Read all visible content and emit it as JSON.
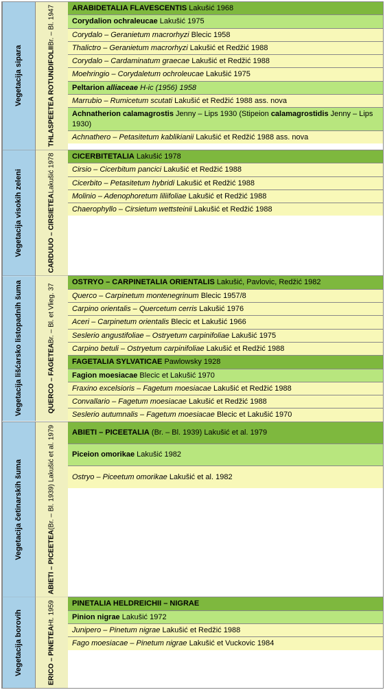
{
  "sections": [
    {
      "col1": "Vegetacija sipara",
      "col2": "<span class='bold'>THLASPEETEA ROTUNDIFOLII</span> Br. – Bl. 1947",
      "rows": [
        {
          "cls": "dark-green",
          "html": "<b>ARABIDETALIA FLAVESCENTIS</b> Lakušić 1968"
        },
        {
          "cls": "light-green",
          "html": "<b>Corydalion ochraleucae</b> Lakušić 1975"
        },
        {
          "cls": "yellow",
          "html": "<i>Corydalo – Geranietum macrorhyzi</i> Blecic 1958"
        },
        {
          "cls": "yellow",
          "html": "<i>Thalictro – Geranietum macrorhyzi</i> Lakušić et Redžić 1988"
        },
        {
          "cls": "yellow",
          "html": "<i>Corydalo – Cardaminatum graecae</i> Lakušić et Redžić 1988"
        },
        {
          "cls": "yellow",
          "html": "<i>Moehringio – Corydaletum ochroleucae</i> Lakušić 1975"
        },
        {
          "cls": "light-green",
          "html": "<b>Peltarion <i>alliaceae</i></b> <i>H-ic (1956) 1958</i>"
        },
        {
          "cls": "yellow",
          "html": "<i>Marrubio – Rumicetum scutati</i> Lakušić et Redžić 1988 ass. nova"
        },
        {
          "cls": "light-green",
          "html": "<b>Achnatherion calamagrostis</b> Jenny – Lips 1930 (Stipeion <b>calamagrostidis</b> Jenny – Lips 1930)"
        },
        {
          "cls": "yellow",
          "html": "<i>Achnathero – Petasitetum kablikianii</i> Lakušić et Redžić 1988 ass. nova"
        }
      ]
    },
    {
      "col1": "Vegetacija visokih zeleni",
      "col2": "<span class='bold'>CARDUUO – CIRSIETEA</span> Lakušić 1978",
      "rows": [
        {
          "cls": "dark-green",
          "html": "<b>CICERBITETALIA</b> Lakušić 1978"
        },
        {
          "cls": "yellow",
          "html": "<i>Cirsio – Cicerbitum pancici</i> Lakušić et Redžić 1988"
        },
        {
          "cls": "yellow",
          "html": "<i>Cicerbito – Petasitetum hybridi</i> Lakušić et Redžić 1988"
        },
        {
          "cls": "yellow",
          "html": "<i>Molinio – Adenophoretum liliifoliae</i> Lakušić et Redžić 1988"
        },
        {
          "cls": "yellow",
          "html": "<i>Chaerophyllo – Cirsietum wettsteinii</i> Lakušić et Redžić 1988"
        }
      ]
    },
    {
      "col1": "Vegetacija lišćarsko listopadnih šuma",
      "col2": "<span class='bold'>QUERCO – FAGETEA</span> Br. – Bl. et Vlieg. 37",
      "rows": [
        {
          "cls": "dark-green",
          "html": "<b>OSTRYO – CARPINETALIA ORIENTALIS</b> Lakušić, Pavlovic, Redžić 1982"
        },
        {
          "cls": "yellow",
          "html": "<i>Querco – Carpinetum montenegrinum</i> Blecic 1957/8"
        },
        {
          "cls": "yellow",
          "html": "<i>Carpino orientalis – Quercetum cerris</i> Lakušić 1976"
        },
        {
          "cls": "yellow",
          "html": "<i>Aceri – Carpinetum orientalis</i> Blecic et Lakušić 1966"
        },
        {
          "cls": "yellow",
          "html": "<i>Seslerio angustifoliae – Ostryetum carpinifoliae</i> Lakušić 1975"
        },
        {
          "cls": "yellow",
          "html": "<i>Carpino betuli – Ostryetum carpinifoliae</i> Lakušić et Redžić 1988"
        },
        {
          "cls": "dark-green",
          "html": "<b>FAGETALIA SYLVATICAE</b> Pawlowsky 1928"
        },
        {
          "cls": "light-green",
          "html": "<b>Fagion moesiacae</b> Blecic et Lakušić 1970"
        },
        {
          "cls": "yellow",
          "html": "<i>Fraxino excelsioris – Fagetum moesiacae</i> Lakušić et Redžić 1988"
        },
        {
          "cls": "yellow",
          "html": "<i>Convallario – Fagetum moesiacae</i> Lakušić et Redžić 1988"
        },
        {
          "cls": "yellow",
          "html": "<i>Seslerio autumnalis – Fagetum moesiacae</i> Blecic et Lakušić 1970"
        }
      ]
    },
    {
      "col1": "Vegetacija četinarskih šuma",
      "col2": "<span class='bold'>ABIETI – PICEETEA</span> (Br. – Bl. 1939) Lakušić et al. 1979",
      "rows": [
        {
          "cls": "dark-green tall",
          "html": "<span><b>ABIETI – PICEETALIA</b> (Br. – Bl. 1939) Lakušić et al. 1979</span>"
        },
        {
          "cls": "light-green tall",
          "html": "<span><b>Piceion omorikae</b> Lakušić 1982</span>"
        },
        {
          "cls": "yellow tall",
          "html": "<span><i>Ostryo – Piceetum omorikae</i> Lakušić et al. 1982</span>"
        }
      ]
    },
    {
      "col1": "Vegetacija borovih",
      "col2": "<span class='bold'>ERICO – PINETEA</span> Ht. 1959",
      "rows": [
        {
          "cls": "dark-green",
          "html": "<b>PINETALIA HELDREICHII – NIGRAE</b>"
        },
        {
          "cls": "light-green",
          "html": "<b>Pinion nigrae</b> Lakušić 1972"
        },
        {
          "cls": "yellow",
          "html": "<i>Junipero – Pinetum nigrae</i> Lakušić et Redžić 1988"
        },
        {
          "cls": "yellow",
          "html": "<i>Fago moesiacae – Pinetum nigrae</i> Lakušić et Vuckovic 1984"
        }
      ]
    }
  ]
}
